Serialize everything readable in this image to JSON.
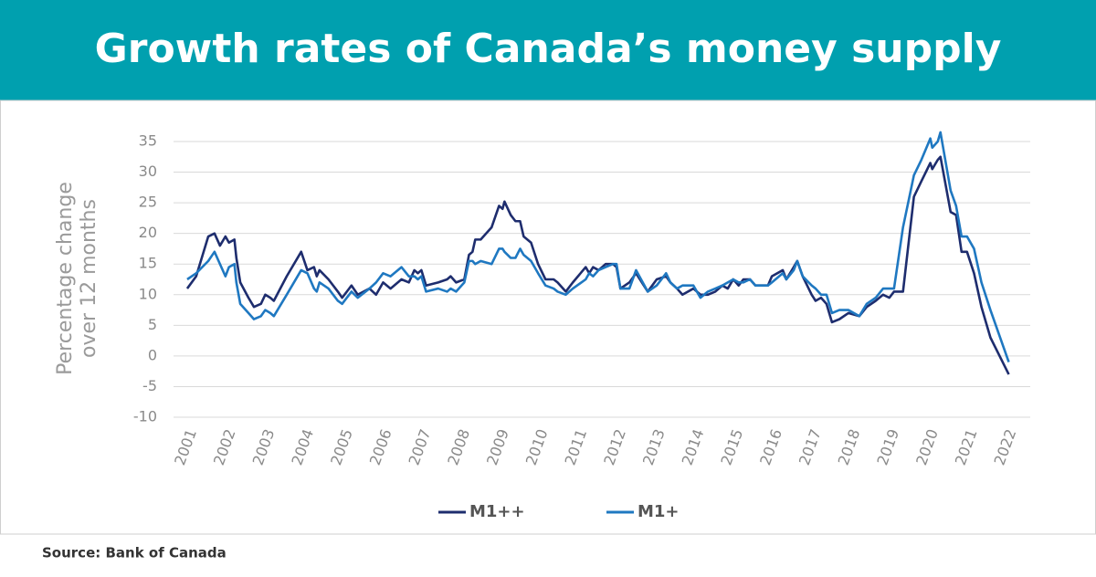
{
  "chart_data": {
    "type": "line",
    "title": "Growth rates of Canada’s money supply",
    "ylabel": [
      "Percentage change",
      "over 12 months"
    ],
    "source": "Source: Bank of Canada",
    "xlim": [
      2000.65,
      2022.6
    ],
    "xticks": [
      2001,
      2002,
      2003,
      2004,
      2005,
      2006,
      2007,
      2008,
      2009,
      2010,
      2011,
      2012,
      2013,
      2014,
      2015,
      2016,
      2017,
      2018,
      2019,
      2020,
      2021,
      2022
    ],
    "ylim": [
      -10,
      35
    ],
    "yticks": [
      -10,
      -5,
      0,
      5,
      10,
      15,
      20,
      25,
      30,
      35
    ],
    "grid": true,
    "x": [
      2001.0,
      2001.23,
      2001.54,
      2001.7,
      2001.84,
      2001.98,
      2002.07,
      2002.21,
      2002.26,
      2002.36,
      2002.57,
      2002.71,
      2002.89,
      2003.0,
      2003.13,
      2003.22,
      2003.55,
      2003.92,
      2004.08,
      2004.25,
      2004.32,
      2004.39,
      2004.62,
      2004.86,
      2004.97,
      2005.21,
      2005.37,
      2005.67,
      2005.84,
      2006.02,
      2006.21,
      2006.49,
      2006.68,
      2006.82,
      2006.91,
      2007.0,
      2007.12,
      2007.43,
      2007.66,
      2007.75,
      2007.89,
      2008.1,
      2008.22,
      2008.31,
      2008.38,
      2008.52,
      2008.8,
      2008.99,
      2009.08,
      2009.13,
      2009.29,
      2009.41,
      2009.53,
      2009.62,
      2009.81,
      2009.99,
      2010.18,
      2010.39,
      2010.49,
      2010.7,
      2010.88,
      2011.21,
      2011.3,
      2011.4,
      2011.54,
      2011.72,
      2011.91,
      2012.0,
      2012.1,
      2012.33,
      2012.5,
      2012.8,
      2013.03,
      2013.27,
      2013.38,
      2013.55,
      2013.69,
      2013.97,
      2014.15,
      2014.34,
      2014.53,
      2014.71,
      2014.85,
      2014.99,
      2015.13,
      2015.25,
      2015.42,
      2015.56,
      2015.88,
      2015.98,
      2016.26,
      2016.35,
      2016.54,
      2016.63,
      2016.77,
      2017.0,
      2017.1,
      2017.24,
      2017.38,
      2017.52,
      2017.71,
      2017.94,
      2018.22,
      2018.41,
      2018.64,
      2018.83,
      2018.99,
      2019.11,
      2019.34,
      2019.62,
      2019.81,
      2020.04,
      2020.09,
      2020.23,
      2020.3,
      2020.56,
      2020.7,
      2020.84,
      2020.98,
      2021.16,
      2021.35,
      2021.58,
      2022.05
    ],
    "series": [
      {
        "name": "M1++",
        "color": "#1e2d6e",
        "values": [
          11,
          13,
          19.5,
          20,
          18,
          19.5,
          18.5,
          19,
          16,
          12,
          9.5,
          8,
          8.5,
          10,
          9.5,
          9,
          13,
          17,
          14,
          14.5,
          13,
          14,
          12.5,
          10.5,
          9.5,
          11.5,
          10,
          11,
          10,
          12,
          11,
          12.5,
          12,
          14,
          13.5,
          14,
          11.5,
          12,
          12.5,
          13,
          12,
          12.5,
          16.5,
          17,
          19,
          19,
          21,
          24.5,
          24,
          25.2,
          23,
          22,
          22,
          19.5,
          18.5,
          15,
          12.5,
          12.5,
          12,
          10.5,
          12,
          14.5,
          13.5,
          14.5,
          14,
          15,
          15,
          14.5,
          11,
          12,
          13.5,
          10.5,
          12.5,
          13,
          12,
          11,
          10,
          11,
          10,
          10,
          10.5,
          11.5,
          11,
          12.5,
          11.5,
          12.5,
          12.5,
          11.5,
          11.5,
          13,
          14,
          12.5,
          14.5,
          15.5,
          13,
          10,
          9,
          9.5,
          8.5,
          5.5,
          6,
          7,
          6.5,
          8,
          9,
          10,
          9.5,
          10.5,
          10.5,
          26,
          28.5,
          31.5,
          30.5,
          32,
          32.5,
          23.5,
          23,
          17,
          17,
          13.5,
          8,
          3,
          -3
        ]
      },
      {
        "name": "M1+",
        "color": "#1f78c1",
        "values": [
          12.5,
          13.5,
          15.5,
          17,
          15,
          13,
          14.5,
          15,
          12,
          8.5,
          7,
          6,
          6.5,
          7.5,
          7,
          6.5,
          10,
          14,
          13.5,
          11,
          10.5,
          12,
          11,
          9,
          8.5,
          10.5,
          9.5,
          11,
          12,
          13.5,
          13,
          14.5,
          13,
          13,
          12.5,
          13,
          10.5,
          11,
          10.5,
          11,
          10.5,
          12,
          15.5,
          15.5,
          15,
          15.5,
          15,
          17.5,
          17.5,
          17,
          16,
          16,
          17.5,
          16.5,
          15.5,
          13.5,
          11.5,
          11,
          10.5,
          10,
          11,
          12.5,
          13.5,
          13,
          14,
          14.5,
          15,
          15,
          11,
          11,
          14,
          10.5,
          11.5,
          13.5,
          12,
          11,
          11.5,
          11.5,
          9.5,
          10.5,
          11,
          11.5,
          12,
          12.5,
          12,
          12,
          12.5,
          11.5,
          11.5,
          12,
          13.5,
          12.5,
          14,
          15.5,
          13,
          11.5,
          11,
          10,
          10,
          7,
          7.5,
          7.5,
          6.5,
          8.5,
          9.5,
          11,
          11,
          11,
          21,
          29.5,
          32,
          35.5,
          34,
          35,
          36.5,
          27,
          24.5,
          19.5,
          19.5,
          17.5,
          12,
          7.5,
          -1
        ]
      }
    ]
  }
}
